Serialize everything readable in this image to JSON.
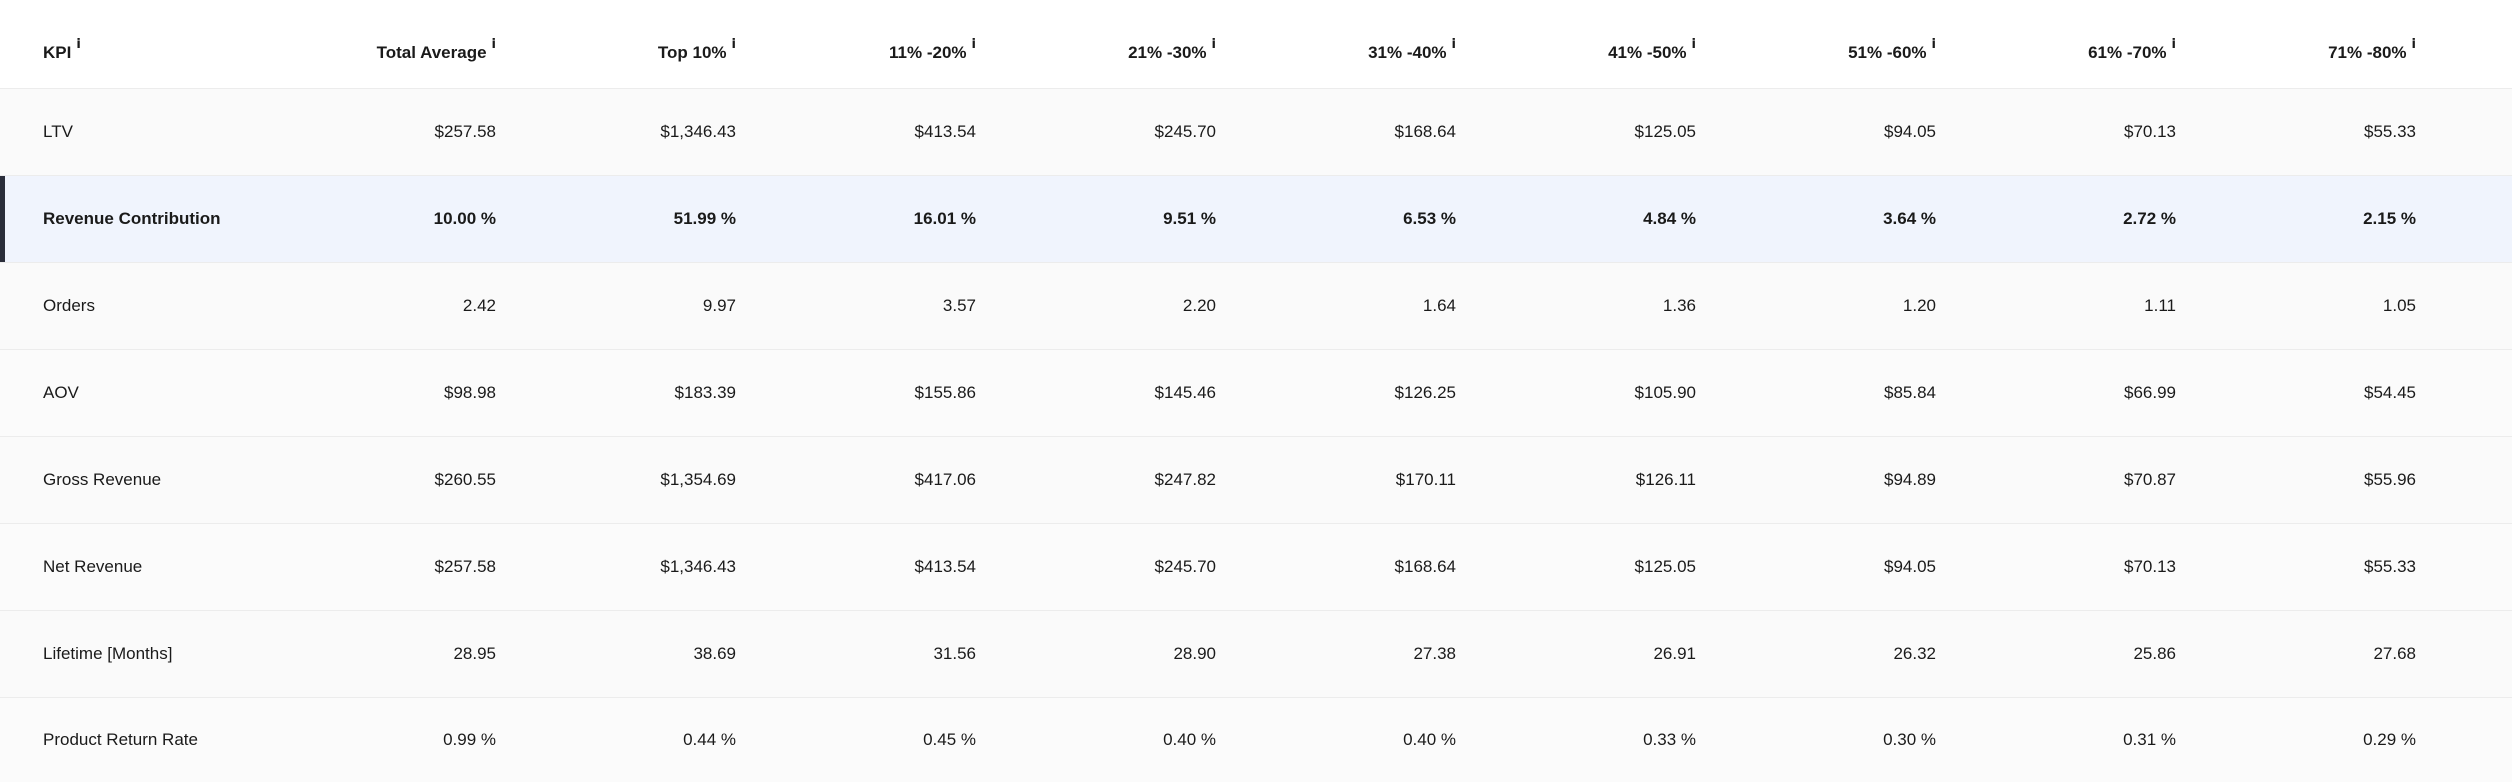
{
  "table": {
    "headers": [
      {
        "label": "KPI",
        "info": "i"
      },
      {
        "label": "Total Average",
        "info": "i"
      },
      {
        "label": "Top 10%",
        "info": "i"
      },
      {
        "label": "11% -20%",
        "info": "i"
      },
      {
        "label": "21% -30%",
        "info": "i"
      },
      {
        "label": "31% -40%",
        "info": "i"
      },
      {
        "label": "41% -50%",
        "info": "i"
      },
      {
        "label": "51% -60%",
        "info": "i"
      },
      {
        "label": "61% -70%",
        "info": "i"
      },
      {
        "label": "71% -80%",
        "info": "i"
      }
    ],
    "rows": [
      {
        "label": "LTV",
        "values": [
          "$257.58",
          "$1,346.43",
          "$413.54",
          "$245.70",
          "$168.64",
          "$125.05",
          "$94.05",
          "$70.13",
          "$55.33"
        ]
      },
      {
        "label": "Revenue Contribution",
        "values": [
          "10.00 %",
          "51.99 %",
          "16.01 %",
          "9.51 %",
          "6.53 %",
          "4.84 %",
          "3.64 %",
          "2.72 %",
          "2.15 %"
        ]
      },
      {
        "label": "Orders",
        "values": [
          "2.42",
          "9.97",
          "3.57",
          "2.20",
          "1.64",
          "1.36",
          "1.20",
          "1.11",
          "1.05"
        ]
      },
      {
        "label": "AOV",
        "values": [
          "$98.98",
          "$183.39",
          "$155.86",
          "$145.46",
          "$126.25",
          "$105.90",
          "$85.84",
          "$66.99",
          "$54.45"
        ]
      },
      {
        "label": "Gross Revenue",
        "values": [
          "$260.55",
          "$1,354.69",
          "$417.06",
          "$247.82",
          "$170.11",
          "$126.11",
          "$94.89",
          "$70.87",
          "$55.96"
        ]
      },
      {
        "label": "Net Revenue",
        "values": [
          "$257.58",
          "$1,346.43",
          "$413.54",
          "$245.70",
          "$168.64",
          "$125.05",
          "$94.05",
          "$70.13",
          "$55.33"
        ]
      },
      {
        "label": "Lifetime [Months]",
        "values": [
          "28.95",
          "38.69",
          "31.56",
          "28.90",
          "27.38",
          "26.91",
          "26.32",
          "25.86",
          "27.68"
        ]
      },
      {
        "label": "Product Return Rate",
        "values": [
          "0.99 %",
          "0.44 %",
          "0.45 %",
          "0.40 %",
          "0.40 %",
          "0.33 %",
          "0.30 %",
          "0.31 %",
          "0.29 %"
        ]
      }
    ],
    "highlighted_row": "Revenue Contribution"
  },
  "colors": {
    "highlight_background": "#f0f4fd",
    "highlight_bar": "#2a2d3a"
  }
}
